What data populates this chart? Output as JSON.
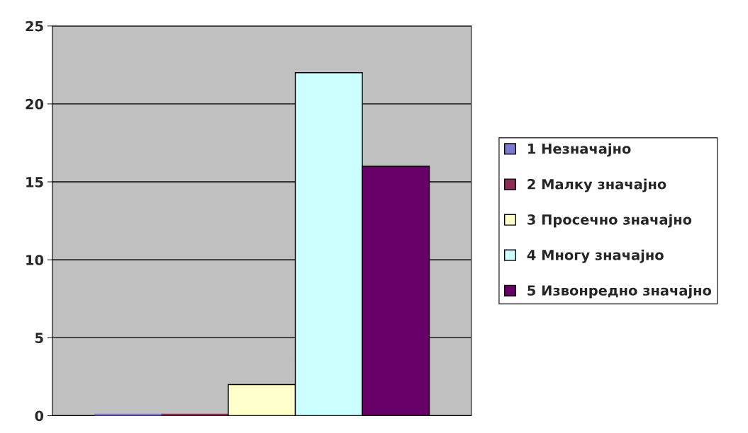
{
  "chart_data": {
    "type": "bar",
    "categories": [
      null
    ],
    "series": [
      {
        "name": "1 Незначајно",
        "color": "#7b7bd0",
        "values": [
          0
        ]
      },
      {
        "name": "2 Малку значајно",
        "color": "#8a2d52",
        "values": [
          0
        ]
      },
      {
        "name": "3 Просечно значајно",
        "color": "#ffffcc",
        "values": [
          2
        ]
      },
      {
        "name": "4 Многу значајно",
        "color": "#ccffff",
        "values": [
          22
        ]
      },
      {
        "name": "5 Извонредно значајно",
        "color": "#660066",
        "values": [
          16
        ]
      }
    ],
    "ylim": [
      0,
      25
    ],
    "yticks": [
      0,
      5,
      10,
      15,
      20,
      25
    ],
    "grid": "y",
    "legend": "right"
  }
}
